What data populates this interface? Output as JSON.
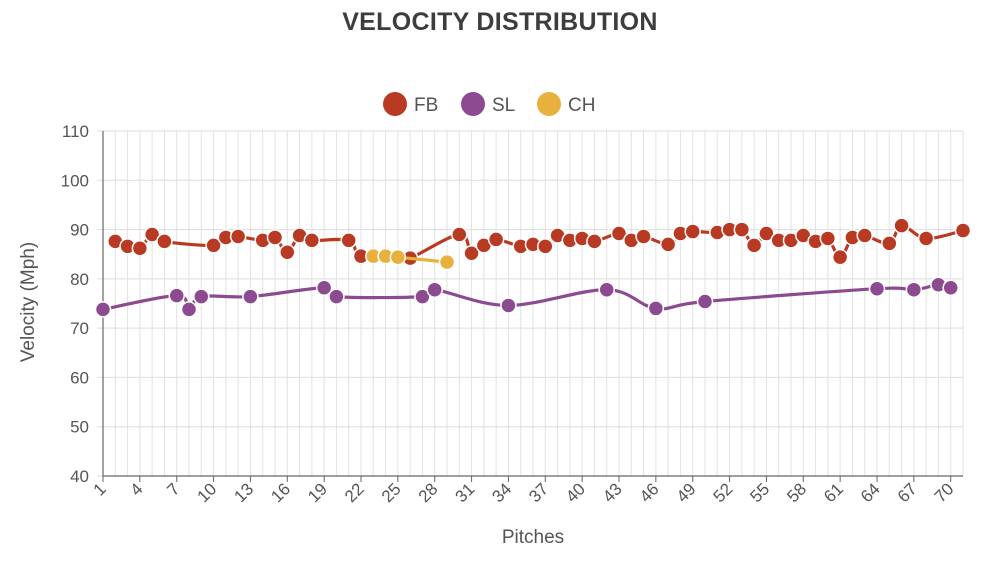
{
  "chart_data": {
    "type": "line",
    "title": "VELOCITY DISTRIBUTION",
    "xlabel": "Pitches",
    "ylabel": "Velocity (Mph)",
    "ylim": [
      40,
      110
    ],
    "yticks": [
      40,
      50,
      60,
      70,
      80,
      90,
      100,
      110
    ],
    "xlim": [
      1,
      71
    ],
    "xticks": [
      1,
      4,
      7,
      10,
      13,
      16,
      19,
      22,
      25,
      28,
      31,
      34,
      37,
      40,
      43,
      46,
      49,
      52,
      55,
      58,
      61,
      64,
      67,
      70
    ],
    "grid": true,
    "legend_position": "top-center",
    "series": [
      {
        "name": "FB",
        "color": "#b93a22",
        "points": [
          [
            2,
            87.6
          ],
          [
            3,
            86.6
          ],
          [
            4,
            86.2
          ],
          [
            5,
            89.0
          ],
          [
            6,
            87.6
          ],
          [
            10,
            86.8
          ],
          [
            11,
            88.4
          ],
          [
            12,
            88.6
          ],
          [
            14,
            87.8
          ],
          [
            15,
            88.4
          ],
          [
            16,
            85.4
          ],
          [
            17,
            88.8
          ],
          [
            18,
            87.8
          ],
          [
            21,
            87.8
          ],
          [
            22,
            84.6
          ],
          [
            25,
            84.4
          ],
          [
            26,
            84.2
          ],
          [
            30,
            89.0
          ],
          [
            31,
            85.2
          ],
          [
            32,
            86.8
          ],
          [
            33,
            88.0
          ],
          [
            35,
            86.6
          ],
          [
            36,
            87.0
          ],
          [
            37,
            86.6
          ],
          [
            38,
            88.8
          ],
          [
            39,
            87.8
          ],
          [
            40,
            88.2
          ],
          [
            41,
            87.6
          ],
          [
            43,
            89.2
          ],
          [
            44,
            87.8
          ],
          [
            45,
            88.6
          ],
          [
            47,
            87.0
          ],
          [
            48,
            89.2
          ],
          [
            49,
            89.6
          ],
          [
            51,
            89.4
          ],
          [
            52,
            90.0
          ],
          [
            53,
            90.0
          ],
          [
            54,
            86.8
          ],
          [
            55,
            89.2
          ],
          [
            56,
            87.8
          ],
          [
            57,
            87.8
          ],
          [
            58,
            88.8
          ],
          [
            59,
            87.6
          ],
          [
            60,
            88.2
          ],
          [
            61,
            84.4
          ],
          [
            62,
            88.4
          ],
          [
            63,
            88.8
          ],
          [
            65,
            87.2
          ],
          [
            66,
            90.8
          ],
          [
            68,
            88.2
          ],
          [
            71,
            89.8
          ]
        ]
      },
      {
        "name": "SL",
        "color": "#8c4a90",
        "points": [
          [
            1,
            73.8
          ],
          [
            7,
            76.6
          ],
          [
            8,
            73.8
          ],
          [
            9,
            76.4
          ],
          [
            13,
            76.4
          ],
          [
            19,
            78.2
          ],
          [
            20,
            76.4
          ],
          [
            27,
            76.4
          ],
          [
            28,
            77.8
          ],
          [
            34,
            74.6
          ],
          [
            42,
            77.8
          ],
          [
            46,
            74.0
          ],
          [
            50,
            75.4
          ],
          [
            64,
            78.0
          ],
          [
            67,
            77.8
          ],
          [
            69,
            78.8
          ],
          [
            70,
            78.2
          ]
        ]
      },
      {
        "name": "CH",
        "color": "#e8b13d",
        "points": [
          [
            23,
            84.6
          ],
          [
            24,
            84.6
          ],
          [
            25,
            84.4
          ],
          [
            29,
            83.4
          ]
        ]
      }
    ]
  }
}
